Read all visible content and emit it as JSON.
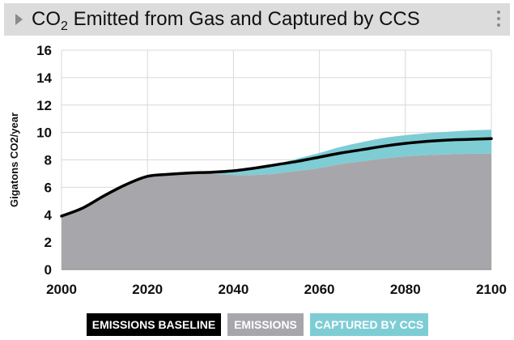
{
  "header": {
    "title_prefix": "CO",
    "title_sub": "2",
    "title_rest": " Emitted from Gas and Captured by CCS",
    "expand_icon": "caret-right-icon",
    "menu_icon": "kebab-menu-icon"
  },
  "colors": {
    "baseline": "#000000",
    "emissions": "#a7a7ab",
    "captured": "#7ecdd5",
    "title_bar": "#dcdcdc"
  },
  "chart_data": {
    "type": "area",
    "title": "CO2 Emitted from Gas and Captured by CCS",
    "xlabel": "",
    "ylabel": "Gigatons CO2/year",
    "xlim": [
      2000,
      2100
    ],
    "ylim": [
      0,
      16
    ],
    "x_ticks": [
      "2000",
      "2020",
      "2040",
      "2060",
      "2080",
      "2100"
    ],
    "y_ticks": [
      "0",
      "2",
      "4",
      "6",
      "8",
      "10",
      "12",
      "14",
      "16"
    ],
    "grid": true,
    "x": [
      2000,
      2005,
      2010,
      2015,
      2020,
      2025,
      2030,
      2035,
      2040,
      2045,
      2050,
      2055,
      2060,
      2065,
      2070,
      2075,
      2080,
      2085,
      2090,
      2095,
      2100
    ],
    "series": [
      {
        "name": "EMISSIONS",
        "type": "area",
        "values": [
          3.9,
          4.5,
          5.4,
          6.2,
          6.8,
          6.9,
          7.0,
          7.0,
          6.9,
          6.9,
          7.0,
          7.2,
          7.4,
          7.7,
          7.9,
          8.1,
          8.25,
          8.35,
          8.4,
          8.45,
          8.45
        ]
      },
      {
        "name": "CAPTURED BY CCS",
        "type": "stacked-area",
        "values": [
          0,
          0,
          0,
          0,
          0,
          0,
          0.05,
          0.1,
          0.3,
          0.5,
          0.7,
          0.9,
          1.1,
          1.25,
          1.4,
          1.5,
          1.55,
          1.6,
          1.65,
          1.7,
          1.75
        ]
      },
      {
        "name": "EMISSIONS BASELINE",
        "type": "line",
        "values": [
          3.9,
          4.5,
          5.4,
          6.2,
          6.8,
          6.95,
          7.05,
          7.1,
          7.2,
          7.4,
          7.65,
          7.9,
          8.2,
          8.5,
          8.75,
          9.0,
          9.2,
          9.35,
          9.45,
          9.5,
          9.55
        ]
      }
    ]
  },
  "legend": [
    {
      "label": "EMISSIONS BASELINE",
      "color": "#000000"
    },
    {
      "label": "EMISSIONS",
      "color": "#a7a7ab"
    },
    {
      "label": "CAPTURED BY CCS",
      "color": "#7ecdd5"
    }
  ]
}
